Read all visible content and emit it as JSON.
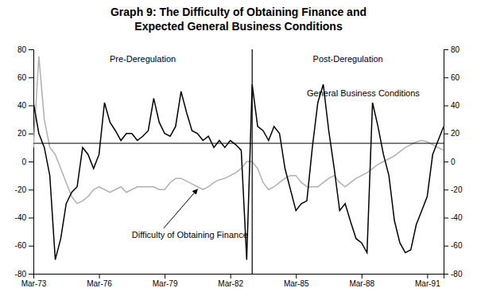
{
  "chart_data": {
    "type": "line",
    "title": [
      "Graph 9: The Difficulty of Obtaining Finance and",
      "Expected General Business Conditions"
    ],
    "categories": [
      "Mar-73",
      null,
      null,
      null,
      null,
      null,
      null,
      null,
      null,
      null,
      null,
      null,
      "Mar-76",
      null,
      null,
      null,
      null,
      null,
      null,
      null,
      null,
      null,
      null,
      null,
      "Mar-79",
      null,
      null,
      null,
      null,
      null,
      null,
      null,
      null,
      null,
      null,
      null,
      "Mar-82",
      null,
      null,
      null,
      null,
      null,
      null,
      null,
      null,
      null,
      null,
      null,
      "Mar-85",
      null,
      null,
      null,
      null,
      null,
      null,
      null,
      null,
      null,
      null,
      null,
      "Mar-88",
      null,
      null,
      null,
      null,
      null,
      null,
      null,
      null,
      null,
      null,
      null,
      "Mar-91",
      null,
      null,
      null
    ],
    "series": [
      {
        "name": "Difficulty of Obtaining Finance",
        "color": "#b0b0b0",
        "values": [
          10,
          75,
          30,
          10,
          5,
          -5,
          -15,
          -25,
          -30,
          -28,
          -25,
          -20,
          -18,
          -20,
          -22,
          -20,
          -18,
          -22,
          -20,
          -18,
          -18,
          -18,
          -18,
          -20,
          -20,
          -15,
          -12,
          -12,
          -14,
          -16,
          -18,
          -20,
          -18,
          -15,
          -13,
          -12,
          -10,
          -8,
          -5,
          0,
          0,
          -5,
          -15,
          -20,
          -18,
          -15,
          -12,
          -10,
          -10,
          -15,
          -18,
          -18,
          -18,
          -15,
          -12,
          -10,
          -15,
          -18,
          -15,
          -12,
          -10,
          -8,
          -5,
          -2,
          0,
          2,
          4,
          7,
          10,
          12,
          14,
          15,
          14,
          12,
          10,
          8
        ]
      },
      {
        "name": "General Business Conditions",
        "color": "#000000",
        "values": [
          42,
          20,
          10,
          -10,
          -70,
          -55,
          -30,
          -22,
          -18,
          10,
          5,
          -5,
          5,
          42,
          28,
          22,
          15,
          20,
          20,
          15,
          18,
          22,
          45,
          28,
          20,
          18,
          25,
          50,
          35,
          22,
          20,
          15,
          18,
          10,
          15,
          10,
          15,
          12,
          8,
          -70,
          55,
          25,
          22,
          15,
          25,
          20,
          -5,
          -20,
          -35,
          -30,
          -28,
          10,
          42,
          55,
          22,
          -5,
          -35,
          -30,
          -43,
          -55,
          -58,
          -65,
          42,
          25,
          5,
          -10,
          -42,
          -58,
          -65,
          -63,
          -45,
          -35,
          -25,
          5,
          15,
          25
        ]
      }
    ],
    "hline": 13,
    "vline": 40,
    "annotations": [
      {
        "text": "Pre-Deregulation"
      },
      {
        "text": "Post-Deregulation"
      }
    ],
    "ylim": [
      -80,
      80
    ],
    "yticks": [
      -80,
      -60,
      -40,
      -20,
      0,
      20,
      40,
      60,
      80
    ],
    "grid": false
  }
}
